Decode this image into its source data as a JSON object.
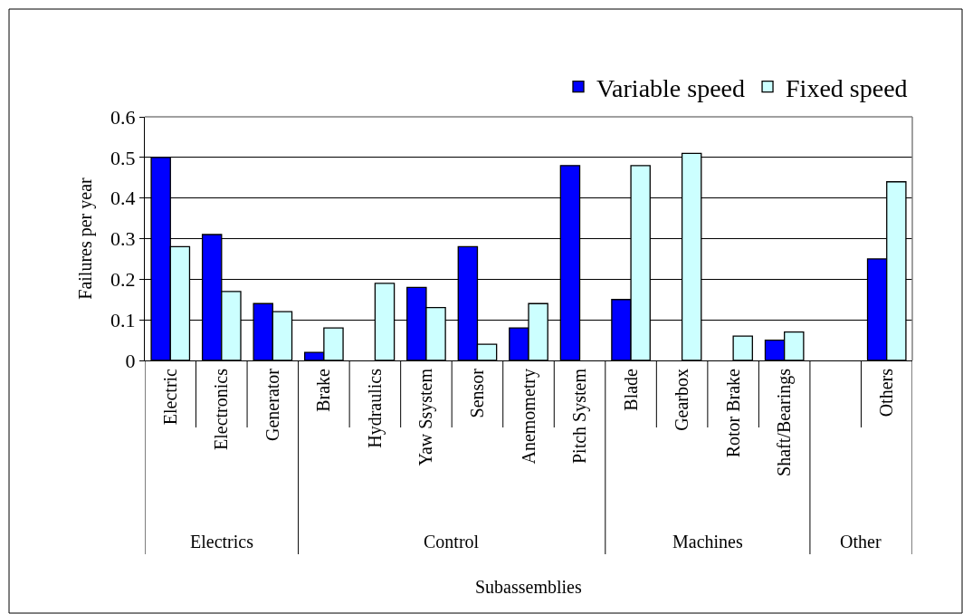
{
  "chart_data": {
    "type": "bar",
    "ylabel": "Failures per year",
    "categories": [
      "Electric",
      "Electronics",
      "Generator",
      "Brake",
      "Hydraulics",
      "Yaw Ssystem",
      "Sensor",
      "Anemometry",
      "Pitch System",
      "Blade",
      "Gearbox",
      "Rotor Brake",
      "Shaft/Bearings",
      null,
      "Others"
    ],
    "series": [
      {
        "name": "Variable speed",
        "color": "#0000ff",
        "values": [
          0.5,
          0.31,
          0.14,
          0.02,
          null,
          0.18,
          0.28,
          0.08,
          0.48,
          0.15,
          null,
          null,
          0.05,
          null,
          0.25
        ]
      },
      {
        "name": "Fixed speed",
        "color": "#ccffff",
        "values": [
          0.28,
          0.17,
          0.12,
          0.08,
          0.19,
          0.13,
          0.04,
          0.14,
          null,
          0.48,
          0.51,
          0.06,
          0.07,
          null,
          0.44
        ]
      }
    ],
    "ylim": [
      0,
      0.6
    ],
    "yticks": [
      {
        "value": 0,
        "label": "0"
      },
      0.1,
      0.2,
      0.3,
      0.4,
      0.5,
      0.6
    ],
    "grid": "y",
    "legend": "top right",
    "annotations": [
      "Electrics",
      "Control",
      "Machines",
      "Other",
      "Subassemblies"
    ]
  }
}
